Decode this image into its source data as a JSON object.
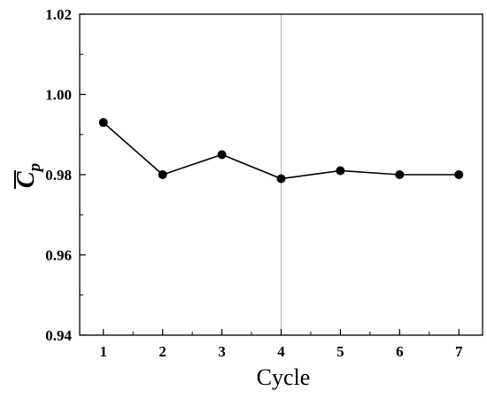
{
  "chart_data": {
    "type": "line",
    "title": "",
    "xlabel": "Cycle",
    "ylabel_main": "C",
    "ylabel_sub": "p",
    "x": [
      1,
      2,
      3,
      4,
      5,
      6,
      7
    ],
    "series": [
      {
        "values": [
          0.993,
          0.98,
          0.985,
          0.979,
          0.981,
          0.98,
          0.98
        ]
      }
    ],
    "xlim": [
      0.6,
      7.4
    ],
    "ylim": [
      0.94,
      1.02
    ],
    "xticks": [
      "1",
      "2",
      "3",
      "4",
      "5",
      "6",
      "7"
    ],
    "yticks": [
      "0.94",
      "0.96",
      "0.98",
      "1.00",
      "1.02"
    ],
    "vline_x": 4,
    "line_color": "#000000",
    "marker_color": "#000000",
    "vline_color": "#b0b0b0",
    "grid": false,
    "legend": "none"
  }
}
